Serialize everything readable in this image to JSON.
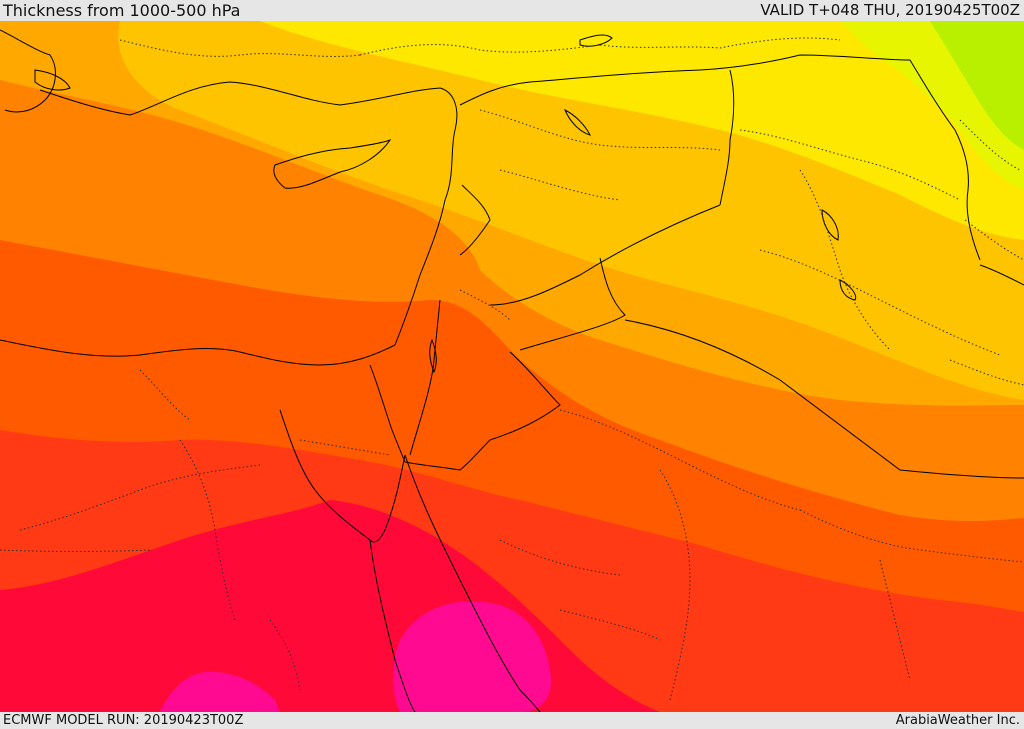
{
  "header": {
    "title": "Thickness from 1000-500 hPa",
    "valid_time": "VALID T+048 THU, 20190425T00Z"
  },
  "footer": {
    "model_run": "ECMWF MODEL RUN: 20190423T00Z",
    "credit": "ArabiaWeather Inc."
  },
  "map": {
    "field": "1000-500 hPa thickness",
    "palette": {
      "lime": "#b8f000",
      "yellow_green": "#e8f500",
      "yellow": "#ffe800",
      "gold": "#ffc400",
      "amber": "#ffa800",
      "orange": "#ff8200",
      "dark_orange": "#ff5a00",
      "red_orange": "#ff3a14",
      "crimson": "#ff0a38",
      "magenta": "#ff0a90",
      "pink": "#ff14b4"
    },
    "boundaries": {
      "coastline": "#000000",
      "country_border": "#000000",
      "province_border": "#2a2a2a"
    }
  }
}
